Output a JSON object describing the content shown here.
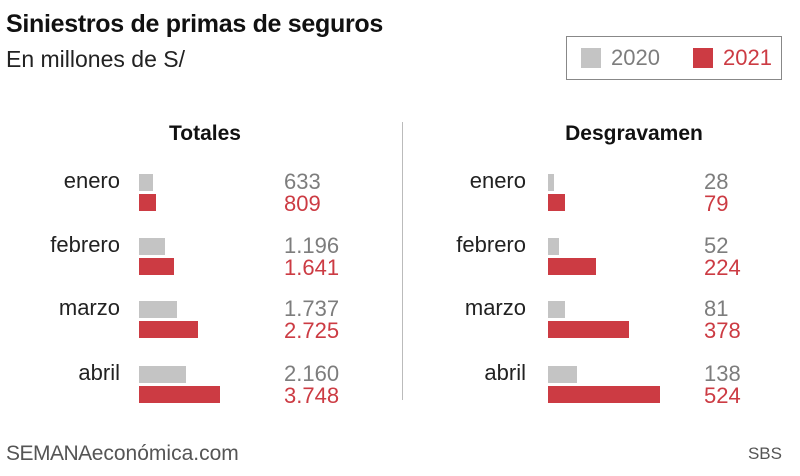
{
  "title": "Siniestros de primas de seguros",
  "subtitle": "En millones de S/",
  "legend": [
    {
      "label": "2020",
      "color": "#c4c4c4"
    },
    {
      "label": "2021",
      "color": "#cc3b43"
    }
  ],
  "chart_data": [
    {
      "type": "bar",
      "title": "Totales",
      "categories": [
        "enero",
        "febrero",
        "marzo",
        "abril"
      ],
      "series": [
        {
          "name": "2020",
          "values": [
            633,
            1196,
            1737,
            2160
          ],
          "labels": [
            "633",
            "1.196",
            "1.737",
            "2.160"
          ]
        },
        {
          "name": "2021",
          "values": [
            809,
            1641,
            2725,
            3748
          ],
          "labels": [
            "809",
            "1.641",
            "2.725",
            "3.748"
          ]
        }
      ]
    },
    {
      "type": "bar",
      "title": "Desgravamen",
      "categories": [
        "enero",
        "febrero",
        "marzo",
        "abril"
      ],
      "series": [
        {
          "name": "2020",
          "values": [
            28,
            52,
            81,
            138
          ],
          "labels": [
            "28",
            "52",
            "81",
            "138"
          ]
        },
        {
          "name": "2021",
          "values": [
            79,
            224,
            378,
            524
          ],
          "labels": [
            "79",
            "224",
            "378",
            "524"
          ]
        }
      ]
    }
  ],
  "footer": {
    "brand_main": "SEMANA",
    "brand_sub": "económica.com",
    "source": "SBS"
  }
}
